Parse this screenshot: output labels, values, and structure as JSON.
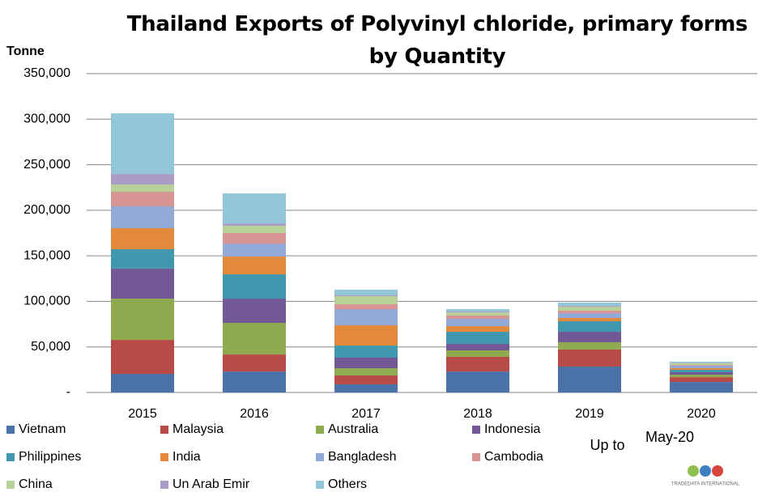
{
  "chart_data": {
    "type": "stacked_bar",
    "title": "Thailand Exports of Polyvinyl chloride, primary forms by Quantity",
    "y_label": "Tonne",
    "categories": [
      "2015",
      "2016",
      "2017",
      "2018",
      "2019",
      "2020"
    ],
    "series": [
      {
        "name": "Vietnam",
        "color": "#4a72a8",
        "values": [
          20400,
          23000,
          8900,
          23000,
          28400,
          11500
        ]
      },
      {
        "name": "Malaysia",
        "color": "#b84a47",
        "values": [
          37300,
          18700,
          9800,
          16100,
          18700,
          5300
        ]
      },
      {
        "name": "Australia",
        "color": "#8faa4f",
        "values": [
          45300,
          34700,
          7900,
          7100,
          8000,
          2700
        ]
      },
      {
        "name": "Indonesia",
        "color": "#735896",
        "values": [
          33000,
          26600,
          11600,
          7100,
          11500,
          2700
        ]
      },
      {
        "name": "Philippines",
        "color": "#3f98ad",
        "values": [
          21200,
          26700,
          13300,
          13300,
          11600,
          2700
        ]
      },
      {
        "name": "India",
        "color": "#e3893d",
        "values": [
          23100,
          19500,
          22200,
          6200,
          3500,
          1800
        ]
      },
      {
        "name": "Bangladesh",
        "color": "#93a9d6",
        "values": [
          24000,
          14200,
          17800,
          8000,
          5300,
          2700
        ]
      },
      {
        "name": "Cambodia",
        "color": "#d99594",
        "values": [
          16000,
          11600,
          5300,
          3600,
          2700,
          900
        ]
      },
      {
        "name": "China",
        "color": "#b8d199",
        "values": [
          8000,
          8000,
          8900,
          3500,
          4400,
          1800
        ]
      },
      {
        "name": "Un Arab Emir",
        "color": "#aa9cc6",
        "values": [
          11500,
          2600,
          900,
          900,
          900,
          400
        ]
      },
      {
        "name": "Others",
        "color": "#92c6d8",
        "values": [
          66600,
          32900,
          6200,
          2700,
          3600,
          1300
        ]
      }
    ],
    "ylim": [
      0,
      350000
    ],
    "yticks": [
      {
        "value": 0,
        "label": "-"
      },
      {
        "value": 50000,
        "label": "50,000"
      },
      {
        "value": 100000,
        "label": "100,000"
      },
      {
        "value": 150000,
        "label": "150,000"
      },
      {
        "value": 200000,
        "label": "200,000"
      },
      {
        "value": 250000,
        "label": "250,000"
      },
      {
        "value": 300000,
        "label": "300,000"
      },
      {
        "value": 350000,
        "label": "350,000"
      }
    ],
    "grid": true,
    "note_prefix": "Up to",
    "note_date": "May-20",
    "logo": "TRADEDATA INTERNATIONAL"
  }
}
